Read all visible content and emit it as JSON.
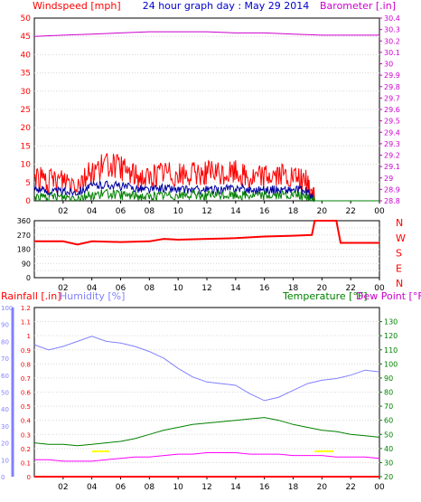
{
  "colors": {
    "bg": "#ffffff",
    "frame": "#000000",
    "grid": "#d8d8d8",
    "wind_avg": "#ff0000",
    "wind_gust": "#0000a0",
    "wind_low": "#008000",
    "baro": "#cc00cc",
    "dir": "#ff0000",
    "rain": "#ff0000",
    "humidity": "#8080ff",
    "temp": "#008000",
    "dew": "#ff00ff",
    "dew_label": "#cc00cc",
    "highlight": "#ffff00"
  },
  "chart_data": [
    {
      "type": "line",
      "panel": "wind-barometer",
      "title": "24 hour graph day : May 29 2014",
      "ylabel_left": "Windspeed [mph]",
      "ylabel_right": "Barometer [.in]",
      "ylim_left": [
        0,
        50
      ],
      "ylim_right": [
        28.8,
        30.4
      ],
      "yticks_left": [
        "0",
        "5",
        "10",
        "15",
        "20",
        "25",
        "30",
        "35",
        "40",
        "45",
        "50"
      ],
      "yticks_right": [
        "28.8",
        "28.9",
        "29",
        "29.1",
        "29.2",
        "29.3",
        "29.4",
        "29.5",
        "29.6",
        "29.7",
        "29.8",
        "29.9",
        "30",
        "30.1",
        "30.2",
        "30.3",
        "30.4"
      ],
      "xticks": [
        "02",
        "04",
        "06",
        "08",
        "10",
        "12",
        "14",
        "16",
        "18",
        "20",
        "22",
        "00"
      ],
      "x_hours": [
        0,
        1,
        2,
        3,
        4,
        5,
        6,
        7,
        8,
        9,
        10,
        11,
        12,
        13,
        14,
        15,
        16,
        17,
        18,
        19,
        19.5
      ],
      "series": [
        {
          "key": "wind_avg",
          "values": [
            7,
            5,
            6,
            5,
            8,
            10,
            9,
            7,
            6,
            8,
            7,
            7,
            8,
            7,
            8,
            6,
            7,
            7,
            6,
            5,
            0
          ]
        },
        {
          "key": "wind_gust",
          "values": [
            3.5,
            2.5,
            2.5,
            2.5,
            4,
            4.5,
            4,
            3.5,
            3,
            3.5,
            3,
            3,
            3,
            3,
            3.5,
            3,
            3,
            3,
            3,
            2.5,
            0
          ]
        },
        {
          "key": "wind_low",
          "values": [
            1,
            1,
            1,
            1,
            1.5,
            2,
            1.5,
            1.5,
            1,
            1.5,
            1.5,
            1.5,
            1.5,
            1.5,
            1.5,
            1.5,
            1.5,
            1.5,
            1.5,
            1,
            0
          ]
        }
      ],
      "barometer": {
        "x_hours": [
          0,
          2,
          4,
          6,
          8,
          10,
          12,
          14,
          16,
          18,
          20,
          22,
          24
        ],
        "values": [
          30.24,
          30.25,
          30.26,
          30.27,
          30.28,
          30.28,
          30.28,
          30.27,
          30.27,
          30.26,
          30.25,
          30.25,
          30.25
        ]
      }
    },
    {
      "type": "line",
      "panel": "wind-direction",
      "ylim": [
        0,
        360
      ],
      "yticks": [
        "0",
        "45",
        "90",
        "135",
        "180",
        "225",
        "270",
        "315",
        "360"
      ],
      "compass_labels": [
        "N",
        "W",
        "S",
        "E",
        "N"
      ],
      "xticks": [
        "02",
        "04",
        "06",
        "08",
        "10",
        "12",
        "14",
        "16",
        "18",
        "20",
        "22",
        "00"
      ],
      "x_hours": [
        0,
        2,
        3,
        4,
        6,
        8,
        9,
        10,
        12,
        14,
        16,
        18,
        19.3,
        19.5,
        21,
        21.3,
        24
      ],
      "values": [
        230,
        230,
        210,
        230,
        225,
        230,
        245,
        240,
        245,
        250,
        260,
        265,
        270,
        360,
        360,
        220,
        220
      ]
    },
    {
      "type": "line",
      "panel": "rain-humidity-temp",
      "ylabel_left1": "Rainfall [.in]",
      "ylabel_left2": "Humidity [%]",
      "ylabel_right1": "Temperature [°F]",
      "ylabel_right2": "Dew Point [°F]",
      "ylim_rain": [
        0,
        1.2
      ],
      "ylim_humidity": [
        0,
        100
      ],
      "ylim_temp": [
        20,
        140
      ],
      "yticks_rain": [
        "0",
        "0.1",
        "0.2",
        "0.3",
        "0.4",
        "0.5",
        "0.6",
        "0.7",
        "0.8",
        "0.9",
        "1",
        "1.1",
        "1.2"
      ],
      "yticks_humidity": [
        "0",
        "10",
        "20",
        "30",
        "40",
        "50",
        "60",
        "70",
        "80",
        "90",
        "100"
      ],
      "yticks_temp": [
        "20",
        "30",
        "40",
        "50",
        "60",
        "70",
        "80",
        "90",
        "100",
        "110",
        "120",
        "130"
      ],
      "xticks": [
        "02",
        "04",
        "06",
        "08",
        "10",
        "12",
        "14",
        "16",
        "18",
        "20",
        "22",
        "00"
      ],
      "x_hours": [
        0,
        1,
        2,
        3,
        4,
        5,
        6,
        7,
        8,
        9,
        10,
        11,
        12,
        13,
        14,
        15,
        16,
        17,
        18,
        19,
        20,
        21,
        22,
        23,
        24
      ],
      "series": [
        {
          "key": "humidity",
          "values": [
            78,
            75,
            77,
            80,
            83,
            80,
            79,
            77,
            74,
            70,
            64,
            59,
            56,
            55,
            54,
            49,
            45,
            47,
            51,
            55,
            57,
            58,
            60,
            63,
            62
          ]
        },
        {
          "key": "temperature",
          "values": [
            44,
            43,
            43,
            42,
            43,
            44,
            45,
            47,
            50,
            53,
            55,
            57,
            58,
            59,
            60,
            61,
            62,
            60,
            57,
            55,
            53,
            52,
            50,
            49,
            48
          ]
        },
        {
          "key": "dew_point",
          "values": [
            32,
            32,
            31,
            31,
            31,
            32,
            33,
            34,
            34,
            35,
            36,
            36,
            37,
            37,
            37,
            36,
            36,
            36,
            35,
            35,
            35,
            34,
            34,
            34,
            33
          ]
        },
        {
          "key": "rainfall",
          "values": [
            0,
            0,
            0,
            0,
            0,
            0,
            0,
            0,
            0,
            0,
            0,
            0,
            0,
            0,
            0,
            0,
            0,
            0,
            0,
            0,
            0,
            0,
            0,
            0,
            0
          ]
        }
      ]
    }
  ]
}
